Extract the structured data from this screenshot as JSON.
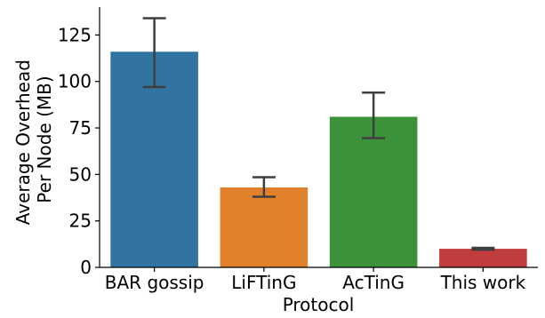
{
  "chart_data": {
    "type": "bar",
    "categories": [
      "BAR gossip",
      "LiFTinG",
      "AcTinG",
      "This work"
    ],
    "values": [
      116,
      43,
      81,
      10
    ],
    "error_low": [
      97,
      38,
      69.5,
      9.5
    ],
    "error_high": [
      134,
      48.5,
      94,
      10.5
    ],
    "colors": [
      "#3274a1",
      "#e1812c",
      "#3a923a",
      "#c03d3e"
    ],
    "error_color": "#3f3f3f",
    "title": "",
    "xlabel": "Protocol",
    "ylabel_lines": [
      "Average Overhead",
      "Per Node (MB)"
    ],
    "ylim": [
      0,
      140
    ],
    "yticks": [
      0,
      25,
      50,
      75,
      100,
      125
    ],
    "grid": false,
    "legend": "none"
  }
}
